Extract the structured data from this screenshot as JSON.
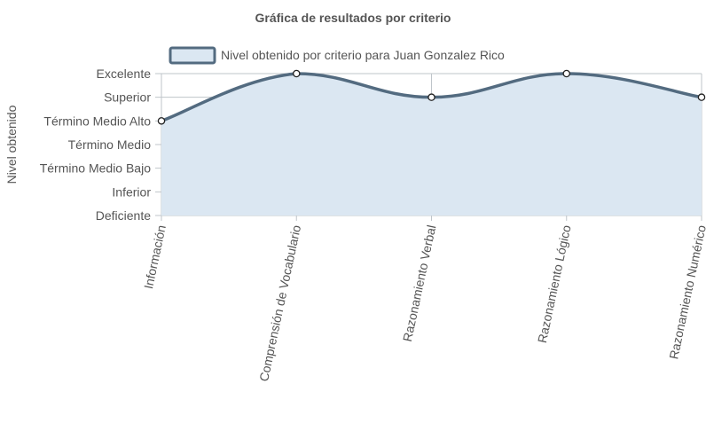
{
  "chart_data": {
    "type": "area",
    "title": "Gráfica de resultados por criterio",
    "ylabel": "Nivel obtenido",
    "xlabel": "",
    "levels": [
      "Deficiente",
      "Inferior",
      "Término Medio Bajo",
      "Término Medio",
      "Término Medio Alto",
      "Superior",
      "Excelente"
    ],
    "categories": [
      "Información",
      "Comprensión de Vocabulario",
      "Razonamiento Verbal",
      "Razonamiento Lógico",
      "Razonamiento Numérico"
    ],
    "series": [
      {
        "name": "Nivel obtenido por criterio para Juan Gonzalez Rico",
        "values": [
          "Término Medio Alto",
          "Excelente",
          "Superior",
          "Excelente",
          "Superior"
        ]
      }
    ],
    "grid": true,
    "legend": "top",
    "colors": {
      "line": "#536b80",
      "fill": "#dbe7f2",
      "point_fill": "#ffffff",
      "point_stroke": "#222222",
      "grid": "#bfc5ca",
      "text": "#555555"
    }
  }
}
